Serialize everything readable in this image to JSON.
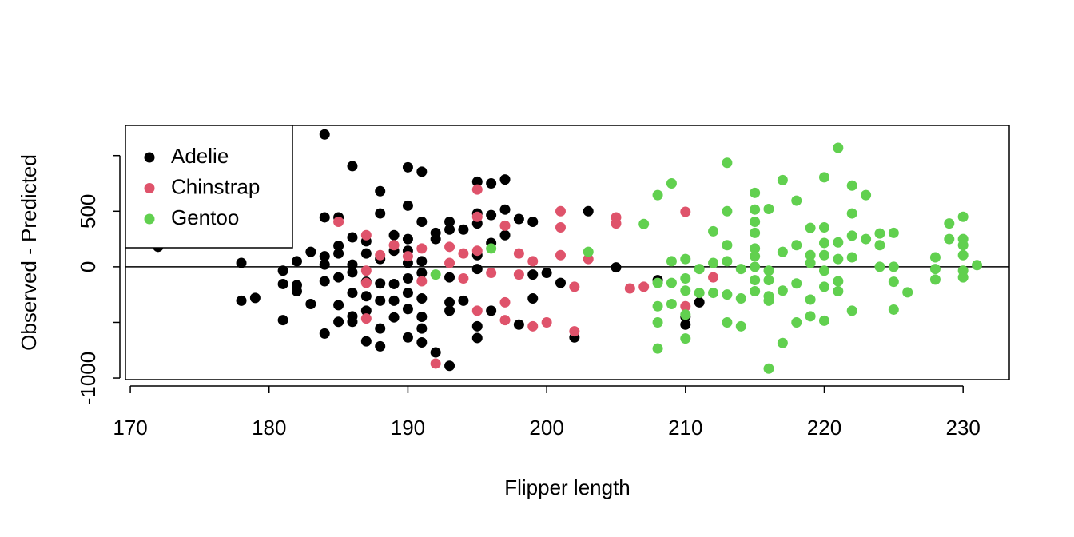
{
  "chart_data": {
    "type": "scatter",
    "xlabel": "Flipper length",
    "ylabel": "Observed - Predicted",
    "xlim": [
      169.65,
      233.33
    ],
    "ylim": [
      -1014,
      1271
    ],
    "xticks": [
      170,
      180,
      190,
      200,
      210,
      220,
      230
    ],
    "yticks": [
      -1000,
      {
        "value": -500,
        "label": null
      },
      0,
      500,
      {
        "value": 1000,
        "label": null
      }
    ],
    "hline": 0,
    "legend": "top-left",
    "series": [
      {
        "name": "Adelie",
        "color": "#000000",
        "x": [
          172,
          178,
          178,
          179,
          181,
          181,
          181,
          182,
          182,
          182,
          183,
          183,
          184,
          184,
          184,
          184,
          184,
          184,
          185,
          185,
          185,
          185,
          185,
          185,
          186,
          186,
          186,
          186,
          186,
          186,
          186,
          187,
          187,
          187,
          187,
          187,
          187,
          188,
          188,
          188,
          188,
          188,
          188,
          188,
          189,
          189,
          189,
          189,
          189,
          190,
          190,
          190,
          190,
          190,
          190,
          190,
          190,
          190,
          191,
          191,
          191,
          191,
          191,
          191,
          191,
          191,
          192,
          192,
          192,
          193,
          193,
          193,
          193,
          193,
          193,
          194,
          194,
          195,
          195,
          195,
          195,
          195,
          195,
          195,
          196,
          196,
          196,
          196,
          197,
          197,
          197,
          198,
          198,
          199,
          199,
          199,
          200,
          201,
          202,
          203,
          205,
          208,
          210,
          210,
          211
        ],
        "values": [
          180,
          35,
          -305,
          -280,
          -35,
          -155,
          -480,
          50,
          -165,
          -220,
          135,
          -335,
          1190,
          445,
          95,
          20,
          -130,
          -600,
          445,
          190,
          120,
          -95,
          -345,
          -495,
          905,
          265,
          20,
          -50,
          -235,
          -445,
          -495,
          230,
          120,
          -135,
          -265,
          -395,
          -670,
          680,
          480,
          70,
          -150,
          -305,
          -555,
          -715,
          285,
          145,
          -155,
          -305,
          -455,
          895,
          550,
          250,
          145,
          35,
          -105,
          -235,
          -380,
          -635,
          855,
          405,
          50,
          -55,
          -285,
          -450,
          -555,
          -680,
          305,
          250,
          -770,
          405,
          335,
          -95,
          -320,
          -395,
          -890,
          335,
          -305,
          765,
          480,
          390,
          105,
          -20,
          -535,
          -640,
          750,
          465,
          215,
          -395,
          785,
          515,
          285,
          430,
          -520,
          405,
          -70,
          -285,
          -55,
          -145,
          -635,
          500,
          -5,
          -120,
          -450,
          -520,
          -320
        ]
      },
      {
        "name": "Chinstrap",
        "color": "#DF536B",
        "x": [
          185,
          187,
          187,
          187,
          187,
          188,
          189,
          190,
          191,
          191,
          192,
          193,
          193,
          194,
          194,
          195,
          195,
          195,
          195,
          196,
          197,
          197,
          197,
          198,
          198,
          199,
          199,
          200,
          201,
          201,
          201,
          202,
          202,
          203,
          205,
          205,
          206,
          207,
          210,
          210,
          212
        ],
        "values": [
          405,
          285,
          -35,
          -145,
          -465,
          105,
          195,
          95,
          165,
          -130,
          -870,
          180,
          35,
          120,
          -105,
          695,
          450,
          145,
          -395,
          -55,
          370,
          -320,
          -480,
          120,
          -70,
          50,
          -535,
          -500,
          500,
          355,
          105,
          -180,
          -580,
          70,
          445,
          390,
          -195,
          -180,
          495,
          -355,
          -95
        ]
      },
      {
        "name": "Gentoo",
        "color": "#61D04F",
        "x": [
          192,
          196,
          203,
          207,
          208,
          208,
          208,
          208,
          208,
          209,
          209,
          209,
          209,
          210,
          210,
          210,
          210,
          210,
          211,
          211,
          212,
          212,
          212,
          213,
          213,
          213,
          213,
          213,
          213,
          214,
          214,
          214,
          215,
          215,
          215,
          215,
          215,
          215,
          215,
          215,
          215,
          216,
          216,
          216,
          216,
          216,
          216,
          217,
          217,
          217,
          217,
          218,
          218,
          218,
          218,
          219,
          219,
          219,
          219,
          219,
          220,
          220,
          220,
          220,
          220,
          220,
          220,
          221,
          221,
          221,
          221,
          221,
          222,
          222,
          222,
          222,
          222,
          223,
          223,
          224,
          224,
          224,
          225,
          225,
          225,
          225,
          226,
          228,
          228,
          228,
          229,
          229,
          230,
          230,
          230,
          230,
          230,
          230,
          231
        ],
        "values": [
          -70,
          165,
          135,
          385,
          645,
          -145,
          -355,
          -500,
          -735,
          750,
          50,
          -145,
          -335,
          70,
          -105,
          -215,
          -430,
          -645,
          -20,
          -235,
          320,
          35,
          -235,
          935,
          500,
          195,
          50,
          -250,
          -500,
          -20,
          -285,
          -535,
          665,
          515,
          405,
          305,
          165,
          95,
          0,
          -120,
          -220,
          520,
          -35,
          -120,
          -265,
          -305,
          -915,
          780,
          135,
          -215,
          -685,
          595,
          195,
          -150,
          -500,
          350,
          105,
          35,
          -295,
          -445,
          805,
          355,
          215,
          105,
          -35,
          -180,
          -485,
          1070,
          220,
          70,
          -130,
          -220,
          730,
          480,
          280,
          85,
          -395,
          645,
          250,
          300,
          0,
          195,
          305,
          0,
          -135,
          -385,
          -230,
          85,
          -20,
          -115,
          390,
          250,
          450,
          250,
          195,
          105,
          -35,
          -95,
          15
        ]
      }
    ]
  }
}
